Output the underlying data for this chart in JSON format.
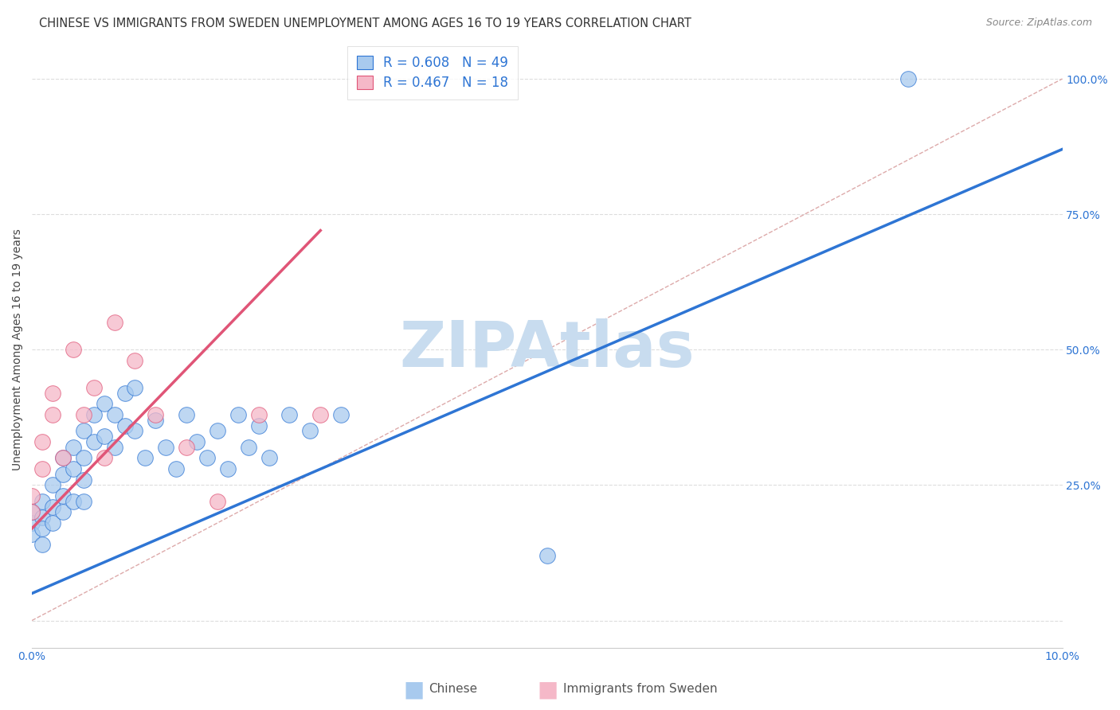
{
  "title": "CHINESE VS IMMIGRANTS FROM SWEDEN UNEMPLOYMENT AMONG AGES 16 TO 19 YEARS CORRELATION CHART",
  "source": "Source: ZipAtlas.com",
  "ylabel": "Unemployment Among Ages 16 to 19 years",
  "watermark": "ZIPAtlas",
  "blue_R": 0.608,
  "blue_N": 49,
  "pink_R": 0.467,
  "pink_N": 18,
  "xlim": [
    0.0,
    0.1
  ],
  "ylim": [
    -0.05,
    1.05
  ],
  "blue_color": "#A8CAEE",
  "blue_line_color": "#2E75D4",
  "pink_color": "#F5B8C8",
  "pink_line_color": "#E05577",
  "blue_scatter_x": [
    0.0,
    0.0,
    0.0,
    0.001,
    0.001,
    0.001,
    0.001,
    0.002,
    0.002,
    0.002,
    0.003,
    0.003,
    0.003,
    0.003,
    0.004,
    0.004,
    0.004,
    0.005,
    0.005,
    0.005,
    0.005,
    0.006,
    0.006,
    0.007,
    0.007,
    0.008,
    0.008,
    0.009,
    0.009,
    0.01,
    0.01,
    0.011,
    0.012,
    0.013,
    0.014,
    0.015,
    0.016,
    0.017,
    0.018,
    0.019,
    0.02,
    0.021,
    0.022,
    0.023,
    0.025,
    0.027,
    0.03,
    0.05,
    0.085
  ],
  "blue_scatter_y": [
    0.18,
    0.16,
    0.2,
    0.22,
    0.19,
    0.17,
    0.14,
    0.25,
    0.21,
    0.18,
    0.3,
    0.27,
    0.23,
    0.2,
    0.32,
    0.28,
    0.22,
    0.35,
    0.3,
    0.26,
    0.22,
    0.38,
    0.33,
    0.4,
    0.34,
    0.38,
    0.32,
    0.42,
    0.36,
    0.43,
    0.35,
    0.3,
    0.37,
    0.32,
    0.28,
    0.38,
    0.33,
    0.3,
    0.35,
    0.28,
    0.38,
    0.32,
    0.36,
    0.3,
    0.38,
    0.35,
    0.38,
    0.12,
    1.0
  ],
  "pink_scatter_x": [
    0.0,
    0.0,
    0.001,
    0.001,
    0.002,
    0.002,
    0.003,
    0.004,
    0.005,
    0.006,
    0.007,
    0.008,
    0.01,
    0.012,
    0.015,
    0.018,
    0.022,
    0.028
  ],
  "pink_scatter_y": [
    0.2,
    0.23,
    0.28,
    0.33,
    0.38,
    0.42,
    0.3,
    0.5,
    0.38,
    0.43,
    0.3,
    0.55,
    0.48,
    0.38,
    0.32,
    0.22,
    0.38,
    0.38
  ],
  "blue_line_x0": 0.0,
  "blue_line_x1": 0.1,
  "blue_line_y0": 0.05,
  "blue_line_y1": 0.87,
  "pink_line_x0": 0.0,
  "pink_line_x1": 0.028,
  "pink_line_y0": 0.17,
  "pink_line_y1": 0.72,
  "diag_line_x0": 0.0,
  "diag_line_x1": 0.1,
  "diag_line_y0": 0.0,
  "diag_line_y1": 1.0,
  "background_color": "#ffffff",
  "grid_color": "#dddddd",
  "title_fontsize": 10.5,
  "axis_label_fontsize": 10,
  "tick_fontsize": 10,
  "watermark_color": "#C8DCEF",
  "watermark_fontsize": 58,
  "source_fontsize": 9
}
